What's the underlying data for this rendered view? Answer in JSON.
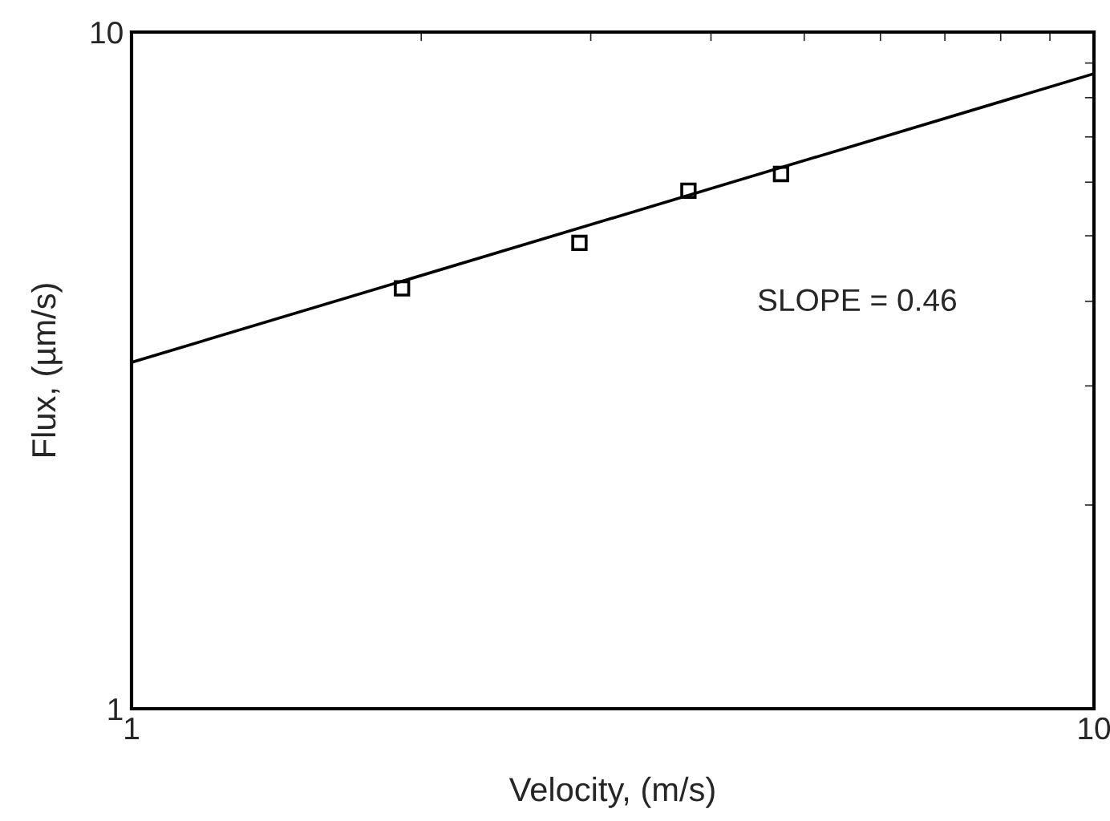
{
  "chart_data": {
    "type": "scatter",
    "xlabel": "Velocity, (m/s)",
    "ylabel": "Flux, (µm/s)",
    "log": "xy",
    "xlim": [
      1,
      10
    ],
    "ylim": [
      1,
      10
    ],
    "xticks": [
      1,
      10
    ],
    "yticks": [
      1,
      10
    ],
    "legend": false,
    "marker": "square",
    "annotations": [
      "SLOPE = 0.46"
    ],
    "series": [
      {
        "color": "#000000",
        "x": [
          1.91,
          2.92,
          3.79,
          4.73
        ],
        "values": [
          4.18,
          4.88,
          5.83,
          6.17
        ]
      },
      {
        "type": "line",
        "marker": "none",
        "color": "#000000",
        "x": [
          1,
          10
        ],
        "values": [
          3.25,
          8.68
        ]
      }
    ]
  }
}
